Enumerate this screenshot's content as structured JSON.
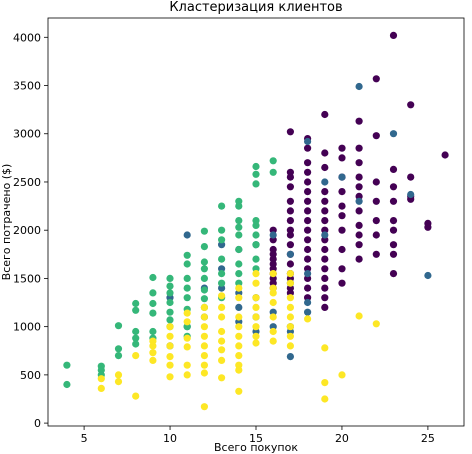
{
  "chart_data": {
    "type": "scatter",
    "title": "Кластеризация клиентов",
    "xlabel": "Всего покупок",
    "ylabel": "Всего потрачено ($)",
    "xlim": [
      2.9,
      27.1
    ],
    "ylim": [
      -30,
      4200
    ],
    "x_ticks": [
      5,
      10,
      15,
      20,
      25
    ],
    "y_ticks": [
      0,
      500,
      1000,
      1500,
      2000,
      2500,
      3000,
      3500,
      4000
    ],
    "grid": false,
    "legend": "none",
    "colors": {
      "cluster_0": "#440154",
      "cluster_1": "#31688e",
      "cluster_2": "#35b779",
      "cluster_3": "#fde725"
    },
    "series": [
      {
        "cluster": "cluster_0",
        "points": [
          [
            16,
            1800
          ],
          [
            16,
            1750
          ],
          [
            16,
            1700
          ],
          [
            16,
            1650
          ],
          [
            16,
            1600
          ],
          [
            16,
            1550
          ],
          [
            16,
            1500
          ],
          [
            16,
            1450
          ],
          [
            16,
            1400
          ],
          [
            16,
            1900
          ],
          [
            16,
            2000
          ],
          [
            17,
            3020
          ],
          [
            17,
            2600
          ],
          [
            17,
            2450
          ],
          [
            17,
            2300
          ],
          [
            17,
            2200
          ],
          [
            17,
            2100
          ],
          [
            17,
            2000
          ],
          [
            17,
            1950
          ],
          [
            17,
            1850
          ],
          [
            17,
            1750
          ],
          [
            17,
            1650
          ],
          [
            17,
            1550
          ],
          [
            17,
            1500
          ],
          [
            17,
            1400
          ],
          [
            17,
            1350
          ],
          [
            17,
            2550
          ],
          [
            18,
            2950
          ],
          [
            18,
            2850
          ],
          [
            18,
            2700
          ],
          [
            18,
            2600
          ],
          [
            18,
            2500
          ],
          [
            18,
            2400
          ],
          [
            18,
            2300
          ],
          [
            18,
            2200
          ],
          [
            18,
            2100
          ],
          [
            18,
            2000
          ],
          [
            18,
            1900
          ],
          [
            18,
            1800
          ],
          [
            18,
            1700
          ],
          [
            18,
            1600
          ],
          [
            18,
            1500
          ],
          [
            18,
            1400
          ],
          [
            18,
            1300
          ],
          [
            19,
            3200
          ],
          [
            19,
            2800
          ],
          [
            19,
            2650
          ],
          [
            19,
            2400
          ],
          [
            19,
            2300
          ],
          [
            19,
            2200
          ],
          [
            19,
            2100
          ],
          [
            19,
            2000
          ],
          [
            19,
            1900
          ],
          [
            19,
            1800
          ],
          [
            19,
            1700
          ],
          [
            19,
            1600
          ],
          [
            19,
            1500
          ],
          [
            19,
            1400
          ],
          [
            19,
            1300
          ],
          [
            19,
            1200
          ],
          [
            20,
            2850
          ],
          [
            20,
            2750
          ],
          [
            20,
            2550
          ],
          [
            20,
            2400
          ],
          [
            20,
            2250
          ],
          [
            20,
            2150
          ],
          [
            20,
            2000
          ],
          [
            20,
            1800
          ],
          [
            20,
            1600
          ],
          [
            20,
            1450
          ],
          [
            21,
            3130
          ],
          [
            21,
            2850
          ],
          [
            21,
            2700
          ],
          [
            21,
            2550
          ],
          [
            21,
            2450
          ],
          [
            21,
            2350
          ],
          [
            21,
            2200
          ],
          [
            21,
            2050
          ],
          [
            21,
            1950
          ],
          [
            21,
            1850
          ],
          [
            21,
            1700
          ],
          [
            22,
            3570
          ],
          [
            22,
            2980
          ],
          [
            22,
            2500
          ],
          [
            22,
            2300
          ],
          [
            22,
            2100
          ],
          [
            22,
            1950
          ],
          [
            22,
            1750
          ],
          [
            23,
            4020
          ],
          [
            23,
            2630
          ],
          [
            23,
            2450
          ],
          [
            23,
            2300
          ],
          [
            23,
            2100
          ],
          [
            23,
            2000
          ],
          [
            23,
            1850
          ],
          [
            23,
            1750
          ],
          [
            23,
            1550
          ],
          [
            24,
            3300
          ],
          [
            24,
            2550
          ],
          [
            24,
            2350
          ],
          [
            24,
            2320
          ],
          [
            25,
            2070
          ],
          [
            25,
            2030
          ],
          [
            26,
            2780
          ]
        ]
      },
      {
        "cluster": "cluster_1",
        "points": [
          [
            11,
            1950
          ],
          [
            11,
            1000
          ],
          [
            10,
            1300
          ],
          [
            10,
            800
          ],
          [
            12,
            1100
          ],
          [
            12,
            1400
          ],
          [
            13,
            1850
          ],
          [
            13,
            1600
          ],
          [
            13,
            1400
          ],
          [
            14,
            1800
          ],
          [
            14,
            1350
          ],
          [
            14,
            1200
          ],
          [
            14,
            1050
          ],
          [
            15,
            950
          ],
          [
            15,
            1100
          ],
          [
            15,
            1300
          ],
          [
            15,
            1850
          ],
          [
            16,
            1950
          ],
          [
            16,
            1150
          ],
          [
            16,
            1000
          ],
          [
            17,
            1750
          ],
          [
            17,
            1450
          ],
          [
            17,
            1000
          ],
          [
            17,
            950
          ],
          [
            17,
            690
          ],
          [
            18,
            2920
          ],
          [
            18,
            1550
          ],
          [
            18,
            1250
          ],
          [
            18,
            1150
          ],
          [
            19,
            2500
          ],
          [
            19,
            1950
          ],
          [
            20,
            2550
          ],
          [
            21,
            3490
          ],
          [
            21,
            2300
          ],
          [
            23,
            3000
          ],
          [
            24,
            2370
          ],
          [
            25,
            1530
          ]
        ]
      },
      {
        "cluster": "cluster_2",
        "points": [
          [
            4,
            600
          ],
          [
            4,
            400
          ],
          [
            6,
            590
          ],
          [
            6,
            550
          ],
          [
            6,
            500
          ],
          [
            7,
            1010
          ],
          [
            7,
            770
          ],
          [
            7,
            700
          ],
          [
            8,
            1240
          ],
          [
            8,
            1170
          ],
          [
            8,
            950
          ],
          [
            8,
            880
          ],
          [
            8,
            820
          ],
          [
            9,
            1510
          ],
          [
            9,
            1350
          ],
          [
            9,
            1240
          ],
          [
            9,
            1140
          ],
          [
            9,
            950
          ],
          [
            9,
            880
          ],
          [
            10,
            1500
          ],
          [
            10,
            1420
          ],
          [
            10,
            1350
          ],
          [
            10,
            1250
          ],
          [
            10,
            1150
          ],
          [
            10,
            1070
          ],
          [
            10,
            1000
          ],
          [
            11,
            1740
          ],
          [
            11,
            1650
          ],
          [
            11,
            1500
          ],
          [
            11,
            1400
          ],
          [
            11,
            1300
          ],
          [
            11,
            1180
          ],
          [
            11,
            1000
          ],
          [
            11,
            900
          ],
          [
            12,
            1990
          ],
          [
            12,
            1830
          ],
          [
            12,
            1670
          ],
          [
            12,
            1600
          ],
          [
            12,
            1500
          ],
          [
            12,
            1380
          ],
          [
            12,
            1290
          ],
          [
            12,
            1200
          ],
          [
            13,
            2250
          ],
          [
            13,
            2000
          ],
          [
            13,
            1900
          ],
          [
            13,
            1700
          ],
          [
            13,
            1550
          ],
          [
            13,
            1450
          ],
          [
            13,
            1300
          ],
          [
            14,
            2300
          ],
          [
            14,
            2250
          ],
          [
            14,
            2100
          ],
          [
            14,
            2030
          ],
          [
            14,
            1950
          ],
          [
            14,
            1800
          ],
          [
            14,
            1650
          ],
          [
            14,
            1550
          ],
          [
            14,
            1450
          ],
          [
            15,
            2660
          ],
          [
            15,
            2580
          ],
          [
            15,
            2480
          ],
          [
            15,
            2100
          ],
          [
            15,
            2050
          ],
          [
            15,
            1950
          ],
          [
            15,
            1850
          ],
          [
            15,
            1700
          ],
          [
            15,
            1600
          ],
          [
            16,
            2720
          ],
          [
            16,
            2600
          ]
        ]
      },
      {
        "cluster": "cluster_3",
        "points": [
          [
            6,
            460
          ],
          [
            6,
            360
          ],
          [
            7,
            500
          ],
          [
            7,
            430
          ],
          [
            8,
            700
          ],
          [
            8,
            280
          ],
          [
            9,
            850
          ],
          [
            9,
            800
          ],
          [
            9,
            730
          ],
          [
            9,
            650
          ],
          [
            10,
            1000
          ],
          [
            10,
            900
          ],
          [
            10,
            800
          ],
          [
            10,
            690
          ],
          [
            10,
            600
          ],
          [
            10,
            480
          ],
          [
            11,
            1140
          ],
          [
            11,
            1050
          ],
          [
            11,
            880
          ],
          [
            11,
            790
          ],
          [
            11,
            600
          ],
          [
            11,
            500
          ],
          [
            12,
            1200
          ],
          [
            12,
            1100
          ],
          [
            12,
            1000
          ],
          [
            12,
            900
          ],
          [
            12,
            800
          ],
          [
            12,
            700
          ],
          [
            12,
            600
          ],
          [
            12,
            520
          ],
          [
            12,
            170
          ],
          [
            13,
            1320
          ],
          [
            13,
            1200
          ],
          [
            13,
            1100
          ],
          [
            13,
            950
          ],
          [
            13,
            850
          ],
          [
            13,
            760
          ],
          [
            13,
            650
          ],
          [
            13,
            470
          ],
          [
            14,
            1400
          ],
          [
            14,
            1300
          ],
          [
            14,
            1100
          ],
          [
            14,
            1000
          ],
          [
            14,
            900
          ],
          [
            14,
            800
          ],
          [
            14,
            700
          ],
          [
            14,
            600
          ],
          [
            14,
            550
          ],
          [
            14,
            330
          ],
          [
            15,
            1550
          ],
          [
            15,
            1450
          ],
          [
            15,
            1300
          ],
          [
            15,
            1200
          ],
          [
            15,
            1100
          ],
          [
            15,
            1000
          ],
          [
            15,
            900
          ],
          [
            15,
            830
          ],
          [
            16,
            1550
          ],
          [
            16,
            1400
          ],
          [
            16,
            1350
          ],
          [
            16,
            1250
          ],
          [
            16,
            1100
          ],
          [
            16,
            950
          ],
          [
            16,
            850
          ],
          [
            17,
            1550
          ],
          [
            17,
            1450
          ],
          [
            17,
            1300
          ],
          [
            17,
            1200
          ],
          [
            17,
            1100
          ],
          [
            17,
            1000
          ],
          [
            17,
            900
          ],
          [
            17,
            800
          ],
          [
            18,
            1080
          ],
          [
            19,
            780
          ],
          [
            19,
            420
          ],
          [
            19,
            250
          ],
          [
            20,
            500
          ],
          [
            21,
            1110
          ],
          [
            22,
            1030
          ]
        ]
      }
    ]
  }
}
